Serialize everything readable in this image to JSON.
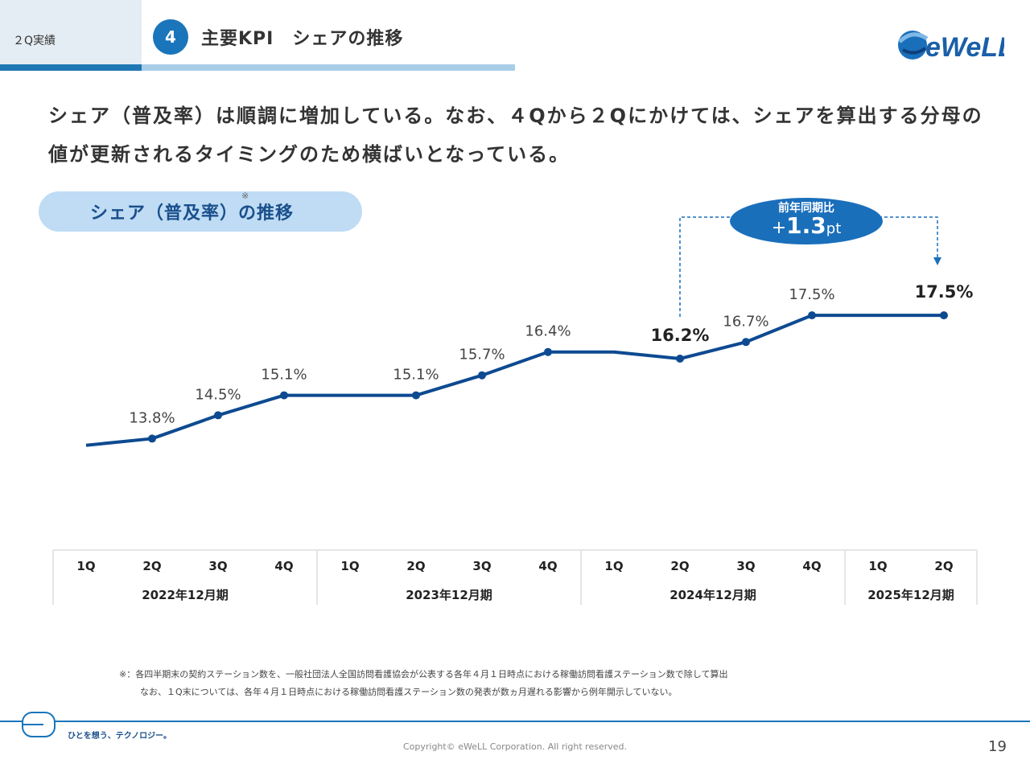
{
  "header": {
    "tag": "２Q実績",
    "section_number": "4",
    "title": "主要KPI　シェアの推移",
    "logo_text": "eWeLL"
  },
  "headline": "シェア（普及率）は順調に増加している。なお、４Qから２Qにかけては、シェアを算出する分母の値が更新されるタイミングのため横ばいとなっている。",
  "subtitle": {
    "text": "シェア（普及率）の推移",
    "note_mark": "※"
  },
  "yoy_callout": {
    "label": "前年同期比",
    "sign": "+",
    "value": "1.3",
    "unit": "pt"
  },
  "chart_data": {
    "type": "line",
    "x": [
      "1Q",
      "2Q",
      "3Q",
      "4Q",
      "1Q",
      "2Q",
      "3Q",
      "4Q",
      "1Q",
      "2Q",
      "3Q",
      "4Q",
      "1Q",
      "2Q"
    ],
    "series": [
      {
        "values": [
          13.6,
          13.8,
          14.5,
          15.1,
          15.1,
          15.1,
          15.7,
          16.4,
          16.4,
          16.2,
          16.7,
          17.5,
          17.5,
          17.5
        ]
      }
    ],
    "data_labels": [
      "",
      "13.8%",
      "14.5%",
      "15.1%",
      "",
      "15.1%",
      "15.7%",
      "16.4%",
      "",
      "16.2%",
      "16.7%",
      "17.5%",
      "",
      "17.5%"
    ],
    "bold_label_indices": [
      9,
      13
    ],
    "markers_hidden_indices": [
      0,
      4,
      8,
      12
    ],
    "periods": [
      {
        "label": "2022年12月期",
        "count": 4
      },
      {
        "label": "2023年12月期",
        "count": 4
      },
      {
        "label": "2024年12月期",
        "count": 4
      },
      {
        "label": "2025年12月期",
        "count": 2
      }
    ],
    "ylim": [
      12,
      19
    ],
    "line_color": "#0d4a91",
    "grid": false
  },
  "footnote": {
    "line1": "※：各四半期末の契約ステーション数を、一般社団法人全国訪問看護協会が公表する各年４月１日時点における稼働訪問看護ステーション数で除して算出",
    "line2": "なお、１Q末については、各年４月１日時点における稼働訪問看護ステーション数の発表が数ヵ月遅れる影響から例年開示していない。"
  },
  "footer": {
    "slogan": "ひとを想う、テクノロジー。",
    "copyright": "Copyright© eWeLL Corporation. All right reserved.",
    "page_number": "19"
  },
  "colors": {
    "accent": "#1a75bb",
    "line": "#0d4a91",
    "pill": "#bfdcf4"
  }
}
